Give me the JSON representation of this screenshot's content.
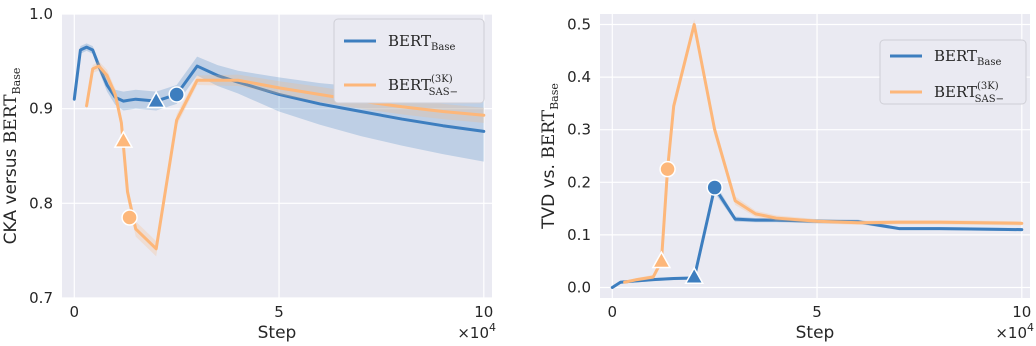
{
  "colors": {
    "base": "#3d7ebf",
    "sas": "#fdb77a",
    "plot_bg": "#eaeaf2"
  },
  "chart_data": [
    {
      "type": "line",
      "ylabel_prefix": "CKA versus ",
      "ylabel_model": "BERT",
      "ylabel_sub": "Base",
      "xlabel": "Step",
      "x_multiplier": "×10",
      "x_multiplier_exp": "4",
      "xlim": [
        -0.3,
        10.2
      ],
      "ylim": [
        0.7,
        1.0
      ],
      "xticks": [
        {
          "v": 0,
          "label": "0"
        },
        {
          "v": 5,
          "label": "5"
        },
        {
          "v": 10,
          "label": "10"
        }
      ],
      "yticks": [
        {
          "v": 0.7,
          "label": "0.7"
        },
        {
          "v": 0.8,
          "label": "0.8"
        },
        {
          "v": 0.9,
          "label": "0.9"
        },
        {
          "v": 1.0,
          "label": "1.0"
        }
      ],
      "legend_position": "top-right",
      "grid": true,
      "series": [
        {
          "name": "BERT",
          "name_sub": "Base",
          "name_sup": "",
          "color_key": "base",
          "x": [
            0,
            0.15,
            0.3,
            0.45,
            0.6,
            0.8,
            1.0,
            1.2,
            1.5,
            2.0,
            2.5,
            3.0,
            3.5,
            4.0,
            5.0,
            6.0,
            7.0,
            8.0,
            9.0,
            10.0
          ],
          "y": [
            0.91,
            0.962,
            0.965,
            0.962,
            0.945,
            0.925,
            0.912,
            0.908,
            0.91,
            0.908,
            0.915,
            0.945,
            0.935,
            0.928,
            0.915,
            0.905,
            0.897,
            0.889,
            0.882,
            0.876
          ],
          "band_halfwidth": [
            0.003,
            0.004,
            0.004,
            0.004,
            0.005,
            0.007,
            0.008,
            0.01,
            0.01,
            0.01,
            0.01,
            0.01,
            0.011,
            0.012,
            0.018,
            0.022,
            0.026,
            0.028,
            0.03,
            0.032
          ],
          "markers": [
            {
              "shape": "triangle",
              "x": 2.0,
              "y": 0.908
            },
            {
              "shape": "circle",
              "x": 2.5,
              "y": 0.915
            }
          ]
        },
        {
          "name": "BERT",
          "name_sub": "SAS−",
          "name_sup": "(3K)",
          "color_key": "sas",
          "x": [
            0.3,
            0.45,
            0.6,
            0.8,
            1.0,
            1.15,
            1.3,
            1.5,
            2.0,
            2.5,
            3.0,
            4.0,
            5.0,
            6.0,
            7.0,
            8.0,
            9.0,
            10.0
          ],
          "y": [
            0.903,
            0.942,
            0.945,
            0.935,
            0.915,
            0.885,
            0.812,
            0.773,
            0.752,
            0.888,
            0.93,
            0.93,
            0.922,
            0.915,
            0.908,
            0.902,
            0.897,
            0.893
          ],
          "band_halfwidth": [
            0.004,
            0.004,
            0.005,
            0.006,
            0.006,
            0.007,
            0.008,
            0.008,
            0.008,
            0.006,
            0.005,
            0.006,
            0.007,
            0.008,
            0.008,
            0.008,
            0.008,
            0.008
          ],
          "markers": [
            {
              "shape": "triangle",
              "x": 1.2,
              "y": 0.866
            },
            {
              "shape": "circle",
              "x": 1.35,
              "y": 0.785
            }
          ]
        }
      ]
    },
    {
      "type": "line",
      "ylabel_prefix": "TVD vs. ",
      "ylabel_model": "BERT",
      "ylabel_sub": "Base",
      "xlabel": "Step",
      "x_multiplier": "×10",
      "x_multiplier_exp": "4",
      "xlim": [
        -0.3,
        10.2
      ],
      "ylim": [
        -0.02,
        0.52
      ],
      "xticks": [
        {
          "v": 0,
          "label": "0"
        },
        {
          "v": 5,
          "label": "5"
        },
        {
          "v": 10,
          "label": "10"
        }
      ],
      "yticks": [
        {
          "v": 0.0,
          "label": "0.0"
        },
        {
          "v": 0.1,
          "label": "0.1"
        },
        {
          "v": 0.2,
          "label": "0.2"
        },
        {
          "v": 0.3,
          "label": "0.3"
        },
        {
          "v": 0.4,
          "label": "0.4"
        },
        {
          "v": 0.5,
          "label": "0.5"
        }
      ],
      "legend_position": "top-right",
      "grid": true,
      "series": [
        {
          "name": "BERT",
          "name_sub": "Base",
          "name_sup": "",
          "color_key": "base",
          "x": [
            0,
            0.2,
            0.5,
            1.0,
            1.5,
            2.0,
            2.5,
            3.0,
            3.5,
            4.0,
            5.0,
            6.0,
            7.0,
            8.0,
            9.0,
            10.0
          ],
          "y": [
            0.0,
            0.01,
            0.012,
            0.015,
            0.017,
            0.018,
            0.19,
            0.13,
            0.128,
            0.128,
            0.126,
            0.125,
            0.112,
            0.112,
            0.111,
            0.11
          ],
          "band_halfwidth": [
            0.002,
            0.003,
            0.003,
            0.003,
            0.003,
            0.003,
            0.01,
            0.005,
            0.004,
            0.004,
            0.004,
            0.004,
            0.003,
            0.003,
            0.003,
            0.003
          ],
          "markers": [
            {
              "shape": "triangle",
              "x": 2.0,
              "y": 0.02
            },
            {
              "shape": "circle",
              "x": 2.5,
              "y": 0.19
            }
          ]
        },
        {
          "name": "BERT",
          "name_sub": "SAS−",
          "name_sup": "(3K)",
          "color_key": "sas",
          "x": [
            0.3,
            0.6,
            1.0,
            1.2,
            1.35,
            1.5,
            2.0,
            2.5,
            3.0,
            3.5,
            4.0,
            5.0,
            6.0,
            7.0,
            8.0,
            9.0,
            10.0
          ],
          "y": [
            0.01,
            0.015,
            0.02,
            0.05,
            0.225,
            0.345,
            0.5,
            0.3,
            0.165,
            0.14,
            0.132,
            0.126,
            0.123,
            0.124,
            0.124,
            0.123,
            0.122
          ],
          "band_halfwidth": [
            0.003,
            0.003,
            0.004,
            0.006,
            0.01,
            0.012,
            0.01,
            0.012,
            0.008,
            0.006,
            0.005,
            0.004,
            0.004,
            0.004,
            0.004,
            0.004,
            0.004
          ],
          "markers": [
            {
              "shape": "triangle",
              "x": 1.2,
              "y": 0.05
            },
            {
              "shape": "circle",
              "x": 1.35,
              "y": 0.225
            }
          ]
        }
      ]
    }
  ]
}
